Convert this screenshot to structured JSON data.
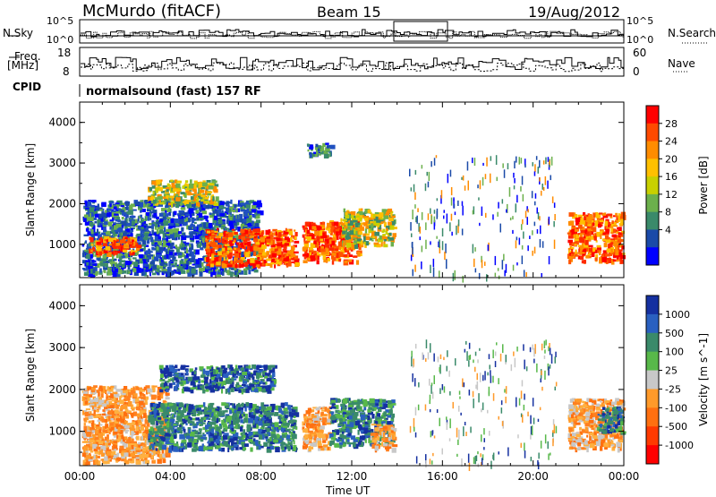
{
  "header": {
    "station": "McMurdo (fitACF)",
    "beam": "Beam 15",
    "date": "19/Aug/2012"
  },
  "left_labels": {
    "nsky": "N.Sky",
    "freq": "Freq.",
    "freq_unit": "[MHz]",
    "freq_ticks": [
      "18",
      "8"
    ],
    "nsky_ticks": [
      "10^5",
      "10^0"
    ],
    "cpid": "CPID"
  },
  "right_labels": {
    "nsearch": "N.Search",
    "nsearch_ticks": [
      "10^5",
      "10^0"
    ],
    "nave": "Nave",
    "nave_ticks": [
      "60",
      "0"
    ]
  },
  "cpid_text": "normalsound (fast) 157 RF",
  "x_axis": {
    "label": "Time UT",
    "ticks": [
      "00:00",
      "04:00",
      "08:00",
      "12:00",
      "16:00",
      "20:00",
      "00:00"
    ]
  },
  "chart_data": [
    {
      "type": "heatmap",
      "panel": "power",
      "ylabel": "Slant Range [km]",
      "yticks": [
        "4000",
        "3000",
        "2000",
        "1000"
      ],
      "ylim": [
        180,
        4500
      ],
      "xlim_hours": [
        0,
        24
      ],
      "colorbar_label": "Power [dB]",
      "colorbar_ticks": [
        "28",
        "24",
        "20",
        "16",
        "12",
        "8",
        "4"
      ],
      "colorbar_colors": [
        "#ff0000",
        "#ff4a00",
        "#ff8c00",
        "#ffc000",
        "#c8d000",
        "#6cb04c",
        "#3a8a6a",
        "#1a4aa8",
        "#0000ff"
      ],
      "regions": [
        {
          "t": [
            0.1,
            7.9
          ],
          "r": [
            300,
            2100
          ],
          "level": "low"
        },
        {
          "t": [
            0.4,
            2.5
          ],
          "r": [
            800,
            1200
          ],
          "level": "high"
        },
        {
          "t": [
            3.0,
            6.0
          ],
          "r": [
            2000,
            2600
          ],
          "level": "mid"
        },
        {
          "t": [
            5.5,
            9.5
          ],
          "r": [
            500,
            1400
          ],
          "level": "high"
        },
        {
          "t": [
            9.8,
            12.3
          ],
          "r": [
            600,
            1600
          ],
          "level": "high"
        },
        {
          "t": [
            11.5,
            13.8
          ],
          "r": [
            1000,
            1900
          ],
          "level": "mid"
        },
        {
          "t": [
            10.0,
            11.2
          ],
          "r": [
            3200,
            3500
          ],
          "level": "low"
        },
        {
          "t": [
            21.5,
            23.9
          ],
          "r": [
            600,
            1800
          ],
          "level": "high"
        },
        {
          "t": [
            14.5,
            21.0
          ],
          "r": [
            200,
            3200
          ],
          "level": "sparse"
        }
      ]
    },
    {
      "type": "heatmap",
      "panel": "velocity",
      "ylabel": "Slant Range [km]",
      "yticks": [
        "4000",
        "3000",
        "2000",
        "1000"
      ],
      "ylim": [
        180,
        4500
      ],
      "xlim_hours": [
        0,
        24
      ],
      "colorbar_label": "Velocity [m s^-1]",
      "colorbar_ticks": [
        "1000",
        "500",
        "100",
        "25",
        "-25",
        "-100",
        "-500",
        "-1000"
      ],
      "colorbar_colors": [
        "#1530a0",
        "#2a60c0",
        "#3a8a6a",
        "#58b84a",
        "#c8c8c8",
        "#ff9a2a",
        "#ff7010",
        "#ff3a00",
        "#ff0000"
      ],
      "regions": [
        {
          "t": [
            0.1,
            3.8
          ],
          "r": [
            300,
            2100
          ],
          "level": "neg"
        },
        {
          "t": [
            3.0,
            9.5
          ],
          "r": [
            600,
            1700
          ],
          "level": "pos"
        },
        {
          "t": [
            3.5,
            8.5
          ],
          "r": [
            2000,
            2600
          ],
          "level": "strongpos"
        },
        {
          "t": [
            9.8,
            11.0
          ],
          "r": [
            600,
            1600
          ],
          "level": "neg"
        },
        {
          "t": [
            11.0,
            13.8
          ],
          "r": [
            700,
            1800
          ],
          "level": "pos"
        },
        {
          "t": [
            12.8,
            13.8
          ],
          "r": [
            600,
            1200
          ],
          "level": "neg"
        },
        {
          "t": [
            21.5,
            23.9
          ],
          "r": [
            600,
            1800
          ],
          "level": "neg"
        },
        {
          "t": [
            22.8,
            23.9
          ],
          "r": [
            1000,
            1600
          ],
          "level": "pos"
        },
        {
          "t": [
            14.5,
            21.0
          ],
          "r": [
            200,
            3200
          ],
          "level": "sparse"
        }
      ]
    }
  ]
}
